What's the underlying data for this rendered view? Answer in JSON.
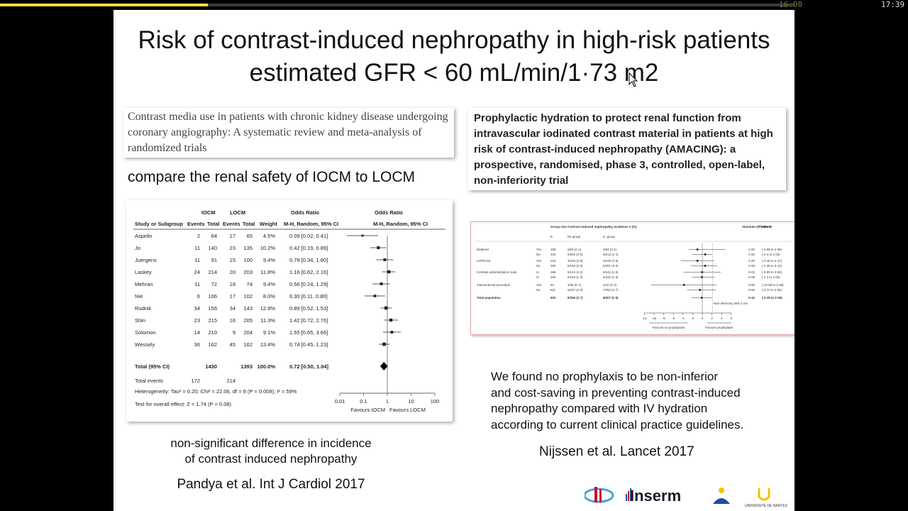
{
  "player": {
    "progress": 0.262,
    "time_elapsed": "16:00",
    "time_total": "17:39"
  },
  "slide": {
    "title_line1": "Risk of contrast-induced nephropathy in high-risk patients",
    "title_line2": "estimated GFR < 60 mL/min/1·73 m2",
    "left": {
      "reference_title": "Contrast media use in patients with chronic kidney disease undergoing coronary angiography: A systematic review and meta-analysis of randomized trials",
      "subheading": "compare the renal safety of IOCM to LOCM",
      "note_line1": "non-significant difference in incidence",
      "note_line2": "of contrast induced nephropathy",
      "citation": "Pandya et al. Int J Cardiol 2017"
    },
    "right": {
      "reference_title": "Prophylactic hydration to protect renal function from intravascular iodinated contrast material in patients at high risk of contrast-induced nephropathy (AMACING): a prospective, randomised, phase 3, controlled, open-label, non-inferiority trial",
      "finding_line1": "We found no prophylaxis to be non-inferior",
      "finding_line2": "and cost-saving in preventing contrast-induced",
      "finding_line3": "nephropathy compared with IV hydration",
      "finding_line4": "according to current clinical practice guidelines.",
      "citation": "Nijssen et al. Lancet 2017"
    }
  },
  "forest_left": {
    "headers": {
      "iocm": "IOCM",
      "locm": "LOCM",
      "or": "Odds Ratio",
      "or_plot": "Odds Ratio",
      "study": "Study or Subgroup",
      "events": "Events",
      "total": "Total",
      "weight": "Weight",
      "method": "M-H, Random, 95% CI"
    },
    "studies": [
      {
        "name": "Aspelin",
        "e1": "2",
        "t1": "64",
        "e2": "17",
        "t2": "65",
        "w": "4.5%",
        "ci": "0.09 [0.02, 0.41]",
        "or": 0.09,
        "lo": 0.02,
        "hi": 0.41
      },
      {
        "name": "Jo",
        "e1": "11",
        "t1": "140",
        "e2": "23",
        "t2": "135",
        "w": "10.2%",
        "ci": "0.42 [0.19, 0.89]",
        "or": 0.42,
        "lo": 0.19,
        "hi": 0.89
      },
      {
        "name": "Juergens",
        "e1": "11",
        "t1": "91",
        "e2": "15",
        "t2": "100",
        "w": "9.4%",
        "ci": "0.78 [0.34, 1.80]",
        "or": 0.78,
        "lo": 0.34,
        "hi": 1.8
      },
      {
        "name": "Laskey",
        "e1": "24",
        "t1": "214",
        "e2": "20",
        "t2": "203",
        "w": "11.8%",
        "ci": "1.16 [0.62, 2.16]",
        "or": 1.16,
        "lo": 0.62,
        "hi": 2.16
      },
      {
        "name": "Mehran",
        "e1": "11",
        "t1": "72",
        "e2": "18",
        "t2": "74",
        "w": "9.4%",
        "ci": "0.56 [0.24, 1.29]",
        "or": 0.56,
        "lo": 0.24,
        "hi": 1.29
      },
      {
        "name": "Nie",
        "e1": "6",
        "t1": "106",
        "e2": "17",
        "t2": "102",
        "w": "8.0%",
        "ci": "0.30 [0.11, 0.80]",
        "or": 0.3,
        "lo": 0.11,
        "hi": 0.8
      },
      {
        "name": "Rudnik",
        "e1": "34",
        "t1": "156",
        "e2": "34",
        "t2": "143",
        "w": "12.9%",
        "ci": "0.89 [0.52, 1.53]",
        "or": 0.89,
        "lo": 0.52,
        "hi": 1.53
      },
      {
        "name": "Shin",
        "e1": "23",
        "t1": "215",
        "e2": "16",
        "t2": "205",
        "w": "11.3%",
        "ci": "1.42 [0.72, 2.76]",
        "or": 1.42,
        "lo": 0.72,
        "hi": 2.76
      },
      {
        "name": "Solomon",
        "e1": "14",
        "t1": "210",
        "e2": "9",
        "t2": "204",
        "w": "9.1%",
        "ci": "1.55 [0.65, 3.66]",
        "or": 1.55,
        "lo": 0.65,
        "hi": 3.66
      },
      {
        "name": "Wessely",
        "e1": "36",
        "t1": "162",
        "e2": "45",
        "t2": "162",
        "w": "13.4%",
        "ci": "0.74 [0.45, 1.23]",
        "or": 0.74,
        "lo": 0.45,
        "hi": 1.23
      }
    ],
    "total": {
      "name": "Total (95% CI)",
      "t1": "1430",
      "t2": "1393",
      "w": "100.0%",
      "ci": "0.72 [0.50, 1.04]",
      "or": 0.72,
      "lo": 0.5,
      "hi": 1.04
    },
    "total_events": {
      "label": "Total events",
      "e1": "172",
      "e2": "214"
    },
    "heterogeneity": "Heterogeneity: Tau² = 0.20; Chi² = 22.06, df = 9 (P = 0.009); I² = 59%",
    "overall_effect": "Test for overall effect: Z = 1.74 (P = 0.08)",
    "axis_ticks": [
      "0.01",
      "0.1",
      "1",
      "10",
      "100"
    ],
    "favours_left": "Favours IOCM",
    "favours_right": "Favours LOCM"
  },
  "forest_right": {
    "headers": {
      "group_size": "Group size",
      "n": "n",
      "incidence": "Contrast-induced nephropathy incidence n (%)",
      "no_group": "No group",
      "h_group": "H. group",
      "abs_diff": "Absolute difference",
      "ci": "95% CI"
    },
    "rows": [
      {
        "label": "Diabetes",
        "sub": "Yes",
        "n": "180",
        "no": "2/94 (2·1)",
        "h": "3/94 (3·2)",
        "diff": "-1·00",
        "ci": "(-2·85 to 4·85)",
        "est": -1.0,
        "lo": -2.85,
        "hi": 4.85
      },
      {
        "label": "",
        "sub": "No",
        "n": "423",
        "no": "6/202 (3·0)",
        "h": "5/213 (2·4)",
        "diff": "0·60",
        "ci": "(-2·1 to 2·05)",
        "est": 0.6,
        "lo": -2.1,
        "hi": 2.05
      },
      {
        "label": "eGFR<45",
        "sub": "Yes",
        "n": "210",
        "no": "3/104 (2·9)",
        "h": "3/106 (2·8)",
        "diff": "-1·00",
        "ci": "(-4·46 to 2·47)",
        "est": -1.0,
        "lo": -4.46,
        "hi": 2.47
      },
      {
        "label": "",
        "sub": "No",
        "n": "393",
        "no": "5/192 (2·6)",
        "h": "6/201 (3·0)",
        "diff": "0·58",
        "ci": "(-2·35 to 3·12)",
        "est": 0.58,
        "lo": -2.35,
        "hi": 3.12
      },
      {
        "label": "Contrast administration route",
        "sub": "IA",
        "n": "286",
        "no": "6/144 (4·2)",
        "h": "6/142 (4·2)",
        "diff": "-0·02",
        "ci": "(-3·89 to 3·83)",
        "est": -0.02,
        "lo": -3.89,
        "hi": 3.83
      },
      {
        "label": "",
        "sub": "IV",
        "n": "354",
        "no": "2/152 (1·3)",
        "h": "2/152 (1·3)",
        "diff": "-0·08",
        "ci": "(-2·2 to 2·60)",
        "est": -0.08,
        "lo": -2.2,
        "hi": 2.6
      },
      {
        "label": "Interventional procedure",
        "sub": "Yes",
        "n": "92",
        "no": "3/45 (6·7)",
        "h": "1/42 (2·3)",
        "diff": "-3·80",
        "ci": "(-10·58 to 2·98)",
        "est": -3.8,
        "lo": -10.58,
        "hi": 2.98
      },
      {
        "label": "",
        "sub": "No",
        "n": "511",
        "no": "5/247 (2·0)",
        "h": "7/264 (2·7)",
        "diff": "-0·50",
        "ci": "(-3·17 to 2·82)",
        "est": -0.5,
        "lo": -3.17,
        "hi": 2.82
      },
      {
        "label": "Total population",
        "sub": "",
        "n": "603",
        "no": "8/296 (2·7)",
        "h": "8/307 (2·6)",
        "diff": "-0·10",
        "ci": "(-2·25 to 2·06)",
        "est": -0.1,
        "lo": -2.25,
        "hi": 2.06
      }
    ],
    "margin_label": "Non-inferiority limit 2·1%",
    "axis_ticks": [
      "-12",
      "-10",
      "-8",
      "-6",
      "-4",
      "-2",
      "0",
      "2",
      "4",
      "6"
    ],
    "favours_left": "Favours no prophylaxis",
    "favours_right": "Favours prophylaxis"
  },
  "logos": {
    "inserm": "Inserm",
    "univ": "UNIVERSITÉ DE NANTES"
  },
  "colors": {
    "progress": "#e9e23a",
    "right_panel_border": "#e6a3a3",
    "inserm_red": "#c8102e",
    "univ_yellow": "#f2c300",
    "univ_blue": "#1f4f9c"
  }
}
